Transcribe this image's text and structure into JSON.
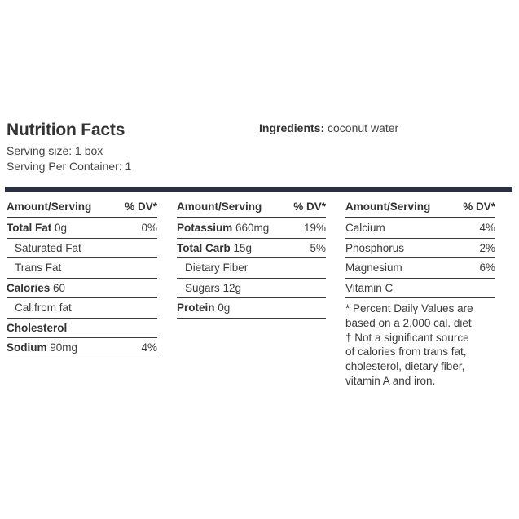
{
  "header": {
    "title": "Nutrition Facts",
    "serving_size": "Serving size: 1 box",
    "servings_per_container": "Serving Per Container: 1",
    "ingredients_label": "Ingredients:",
    "ingredients_value": " coconut water"
  },
  "columns": [
    {
      "head_amount": "Amount/Serving",
      "head_dv": "% DV*",
      "rows": [
        {
          "bold": "Total Fat",
          "rest": " 0g",
          "dv": "0%"
        },
        {
          "bold": "",
          "rest": "Saturated Fat",
          "dv": ""
        },
        {
          "bold": "",
          "rest": "Trans Fat",
          "dv": ""
        },
        {
          "bold": "Calories",
          "rest": " 60",
          "dv": ""
        },
        {
          "bold": "",
          "rest": "Cal.from fat",
          "dv": ""
        },
        {
          "bold": "Cholesterol",
          "rest": "",
          "dv": ""
        },
        {
          "bold": "Sodium",
          "rest": " 90mg",
          "dv": "4%"
        }
      ]
    },
    {
      "head_amount": "Amount/Serving",
      "head_dv": "% DV*",
      "rows": [
        {
          "bold": "Potassium",
          "rest": " 660mg",
          "dv": "19%"
        },
        {
          "bold": "Total Carb",
          "rest": " 15g",
          "dv": "5%"
        },
        {
          "bold": "",
          "rest": "Dietary Fiber",
          "dv": ""
        },
        {
          "bold": "",
          "rest": "Sugars 12g",
          "dv": ""
        },
        {
          "bold": "Protein",
          "rest": " 0g",
          "dv": ""
        }
      ]
    },
    {
      "head_amount": "Amount/Serving",
      "head_dv": "% DV*",
      "rows": [
        {
          "bold": "",
          "rest": "Calcium",
          "dv": "4%"
        },
        {
          "bold": "",
          "rest": "Phosphorus",
          "dv": "2%"
        },
        {
          "bold": "",
          "rest": "Magnesium",
          "dv": "6%"
        },
        {
          "bold": "",
          "rest": "Vitamin C",
          "dv": ""
        }
      ],
      "note": [
        "* Percent Daily Values are",
        "based on a 2,000 cal. diet",
        "† Not a significant source",
        "of calories from trans fat,",
        "cholesterol, dietary fiber,",
        "vitamin A and iron."
      ]
    }
  ]
}
